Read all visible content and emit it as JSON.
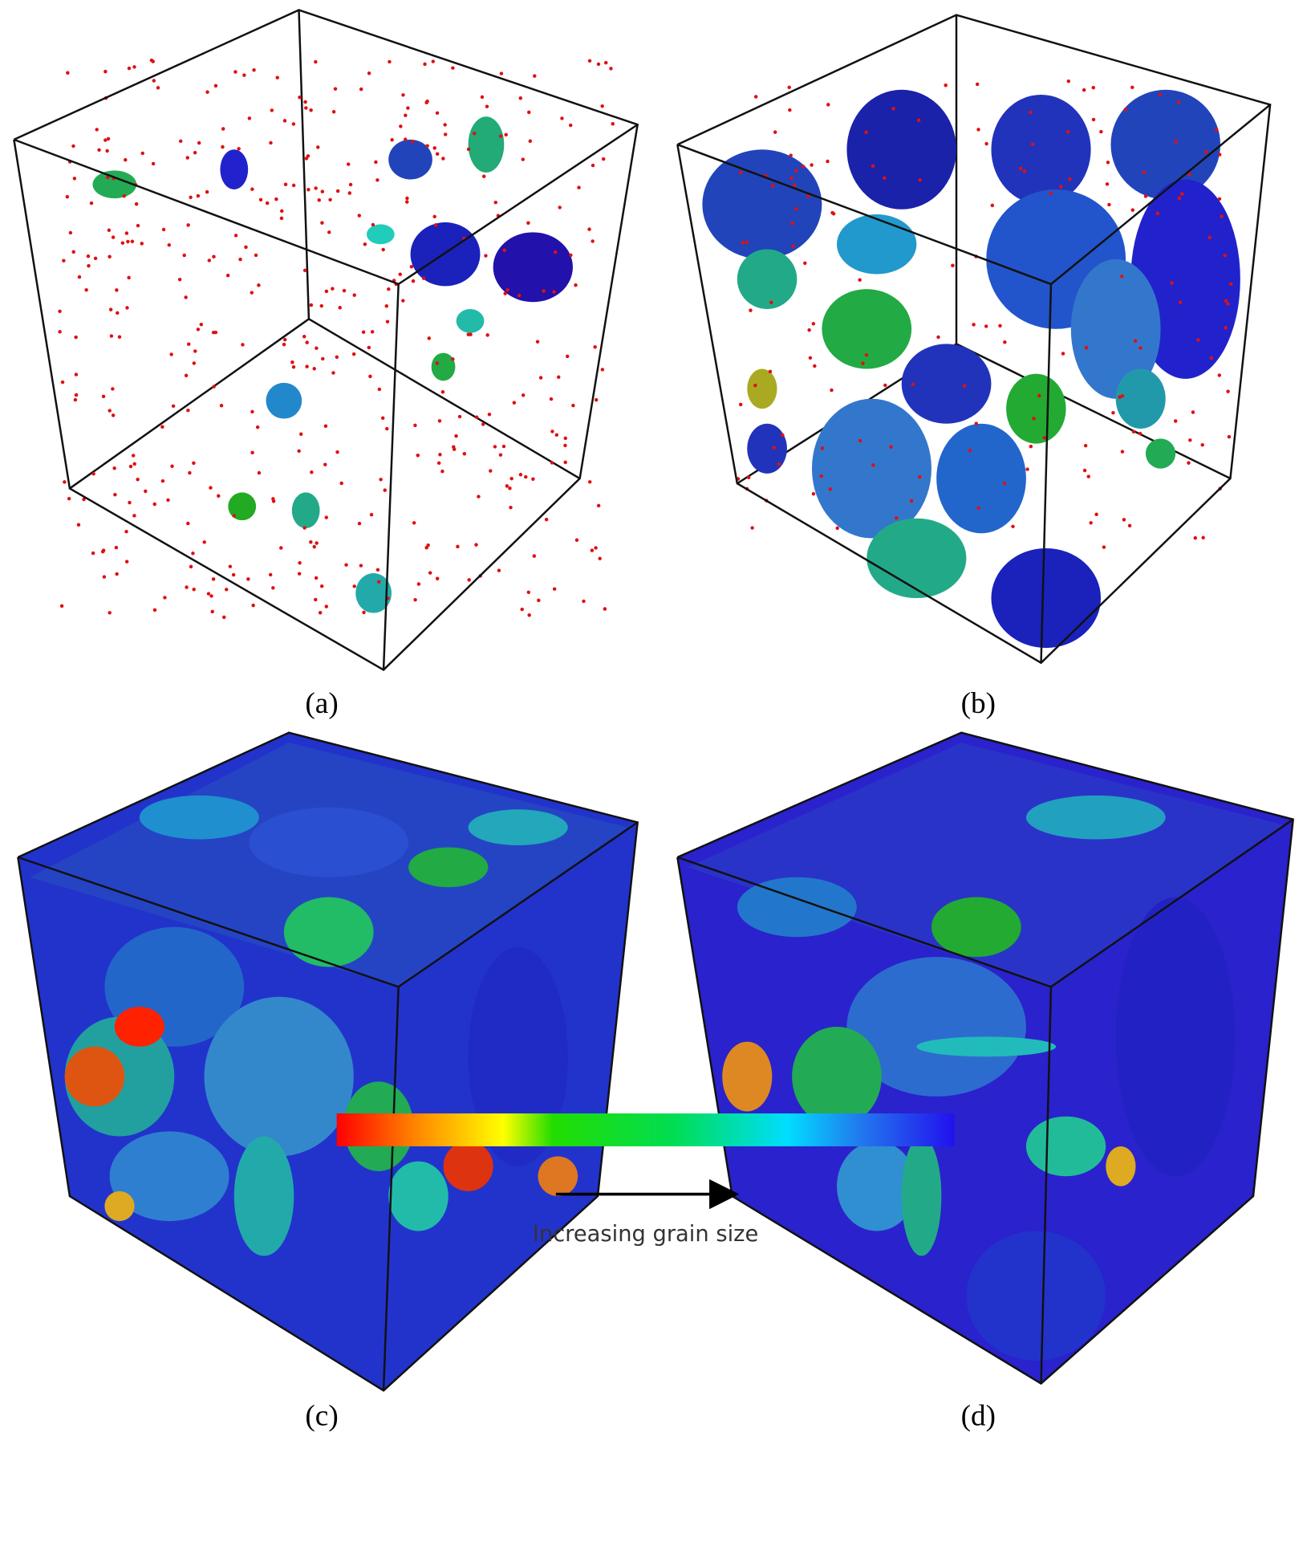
{
  "panels": [
    {
      "label": "(a)"
    },
    {
      "label": "(b)"
    },
    {
      "label": "(c)"
    },
    {
      "label": "(d)"
    }
  ],
  "colorbar": {
    "caption": "Increasing grain size"
  }
}
